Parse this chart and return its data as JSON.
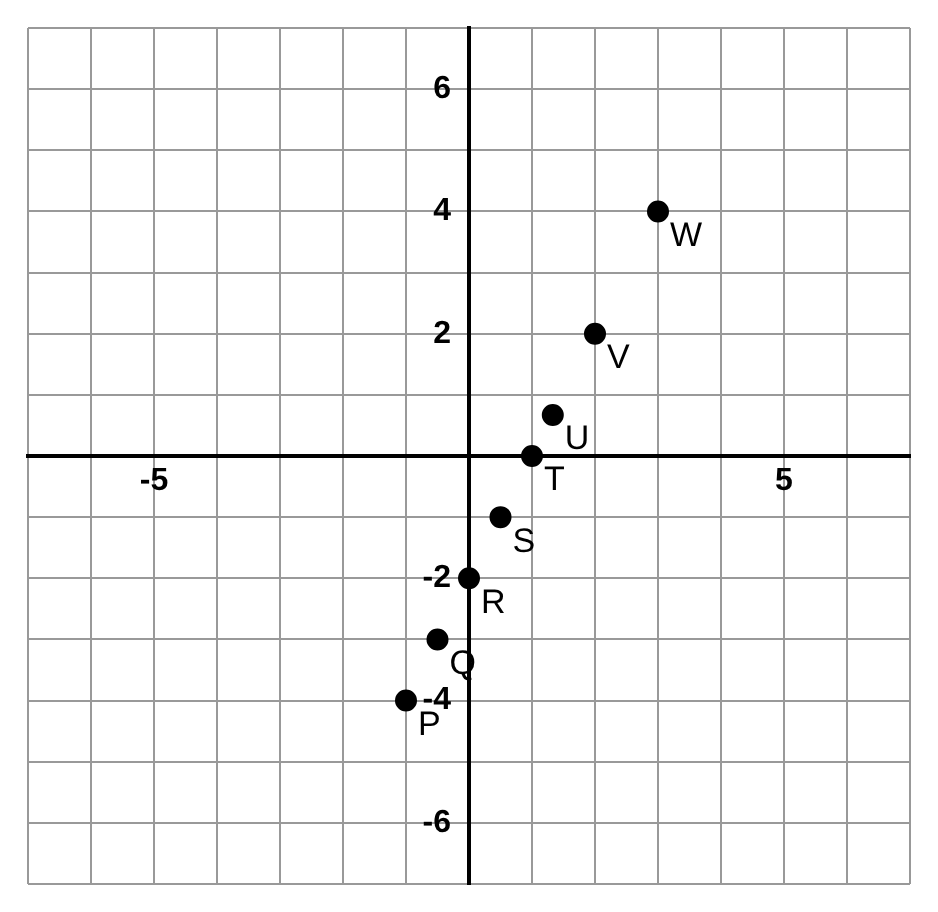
{
  "chart_data": {
    "type": "scatter",
    "x": [
      -1,
      -0.5,
      0,
      0.5,
      1,
      1.33,
      2,
      3
    ],
    "values": [
      -4,
      -3,
      -2,
      -1,
      0,
      0.67,
      2,
      4
    ],
    "color": "#000000",
    "marker": "circle",
    "grid": true,
    "legend": false,
    "xlim": [
      -7,
      7
    ],
    "ylim": [
      -7,
      7
    ],
    "xticks": [
      {
        "value": -7,
        "label": null
      },
      {
        "value": -6,
        "label": null
      },
      -5,
      {
        "value": -4,
        "label": null
      },
      {
        "value": -3,
        "label": null
      },
      {
        "value": -2,
        "label": null
      },
      {
        "value": -1,
        "label": null
      },
      {
        "value": 0,
        "label": null
      },
      {
        "value": 1,
        "label": null
      },
      {
        "value": 2,
        "label": null
      },
      {
        "value": 3,
        "label": null
      },
      {
        "value": 4,
        "label": null
      },
      5,
      {
        "value": 6,
        "label": null
      },
      {
        "value": 7,
        "label": null
      }
    ],
    "yticks": [
      {
        "value": -7,
        "label": null
      },
      -6,
      {
        "value": -5,
        "label": null
      },
      -4,
      {
        "value": -3,
        "label": null
      },
      -2,
      {
        "value": -1,
        "label": null
      },
      {
        "value": 0,
        "label": null
      },
      {
        "value": 1,
        "label": null
      },
      2,
      {
        "value": 3,
        "label": null
      },
      4,
      {
        "value": 5,
        "label": null
      },
      6,
      {
        "value": 7,
        "label": null
      }
    ],
    "annotations": [
      {
        "text": "P",
        "x": -1,
        "y": -4
      },
      {
        "text": "Q",
        "x": -0.5,
        "y": -3
      },
      {
        "text": "R",
        "x": 0,
        "y": -2
      },
      {
        "text": "S",
        "x": 0.5,
        "y": -1
      },
      {
        "text": "T",
        "x": 1,
        "y": 0
      },
      {
        "text": "U",
        "x": 1.33,
        "y": 0.67
      },
      {
        "text": "V",
        "x": 2,
        "y": 2
      },
      {
        "text": "W",
        "x": 3,
        "y": 4
      }
    ]
  }
}
